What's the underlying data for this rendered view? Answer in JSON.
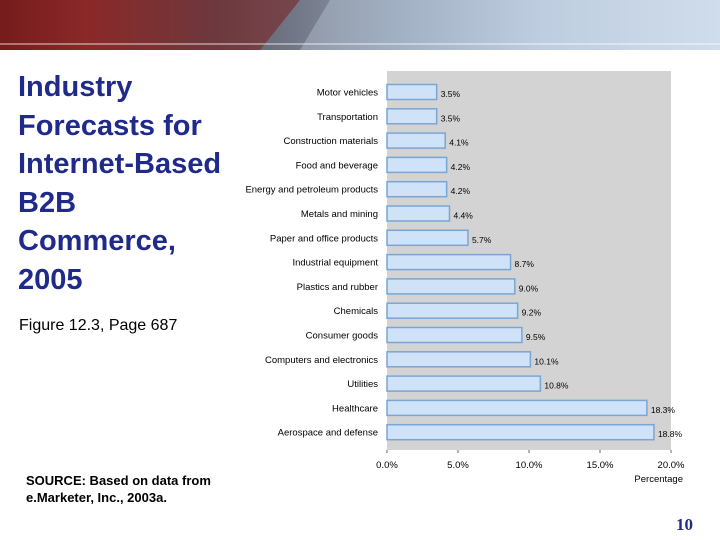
{
  "slide": {
    "title_lines": [
      "Industry",
      "Forecasts for",
      "Internet-Based",
      "B2B",
      "Commerce,",
      "2005"
    ],
    "figure_ref": "Figure 12.3, Page 687",
    "source_lines": [
      "SOURCE: Based on data from",
      "e.Marketer, Inc., 2003a."
    ],
    "page_number": "10"
  },
  "colors": {
    "title": "#1f2a8a",
    "bar_fill": "#cfe2f7",
    "bar_stroke": "#7aa6d3",
    "plot_bg": "#d3d3d3"
  },
  "chart_data": {
    "type": "bar",
    "orientation": "horizontal",
    "categories": [
      "Motor vehicles",
      "Transportation",
      "Construction materials",
      "Food and beverage",
      "Energy and petroleum products",
      "Metals and mining",
      "Paper and office products",
      "Industrial equipment",
      "Plastics and rubber",
      "Chemicals",
      "Consumer goods",
      "Computers and electronics",
      "Utilities",
      "Healthcare",
      "Aerospace and defense"
    ],
    "values": [
      3.5,
      3.5,
      4.1,
      4.2,
      4.2,
      4.4,
      5.7,
      8.7,
      9.0,
      9.2,
      9.5,
      10.1,
      10.8,
      18.3,
      18.8
    ],
    "value_labels": [
      "3.5%",
      "3.5%",
      "4.1%",
      "4.2%",
      "4.2%",
      "4.4%",
      "5.7%",
      "8.7%",
      "9.0%",
      "9.2%",
      "9.5%",
      "10.1%",
      "10.8%",
      "18.3%",
      "18.8%"
    ],
    "xticks": [
      0,
      5,
      10,
      15,
      20
    ],
    "xtick_labels": [
      "0.0%",
      "5.0%",
      "10.0%",
      "15.0%",
      "20.0%"
    ],
    "xlabel": "Percentage",
    "xlim": [
      0,
      20
    ],
    "grid": false
  }
}
